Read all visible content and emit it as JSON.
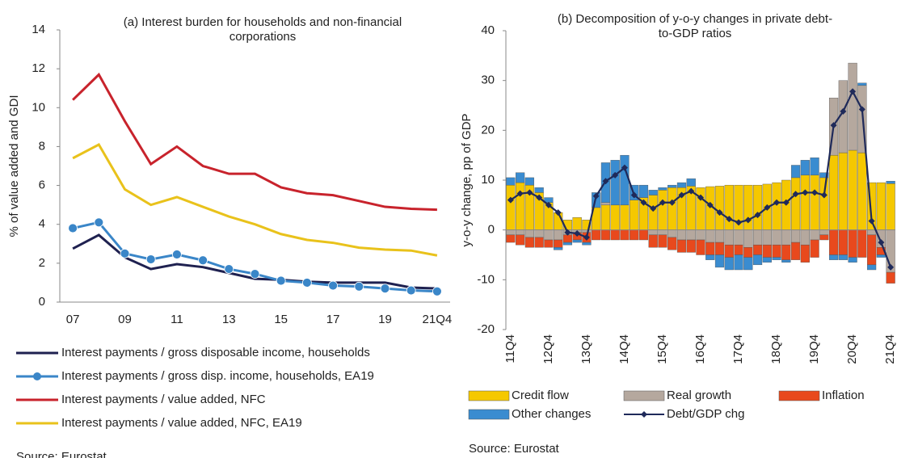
{
  "chart_data": [
    {
      "type": "line",
      "title": [
        "(a) Interest burden for households  and non-financial",
        "corporations"
      ],
      "y_label": "% of value added and GDI",
      "categories": [
        "07",
        null,
        "09",
        null,
        "11",
        null,
        "13",
        null,
        "15",
        null,
        "17",
        null,
        "19",
        null,
        "21Q4"
      ],
      "ylim": [
        0,
        14
      ],
      "yticks": [
        0,
        2,
        4,
        6,
        8,
        10,
        12,
        14
      ],
      "series": [
        {
          "name": "Interest payments / gross disposable income, households",
          "color": "#1f2150",
          "marker": "none",
          "values": [
            2.75,
            3.45,
            2.3,
            1.7,
            1.95,
            1.8,
            1.5,
            1.2,
            1.15,
            1.05,
            1.0,
            1.0,
            1.0,
            0.75,
            0.7
          ]
        },
        {
          "name": "Interest payments / gross disp. income, households, EA19",
          "color": "#3a86c8",
          "marker": "circle",
          "values": [
            3.8,
            4.1,
            2.5,
            2.2,
            2.45,
            2.15,
            1.7,
            1.45,
            1.1,
            1.0,
            0.85,
            0.8,
            0.7,
            0.6,
            0.55
          ]
        },
        {
          "name": "Interest payments / value added, NFC",
          "color": "#c8232c",
          "marker": "none",
          "values": [
            10.4,
            11.7,
            9.3,
            7.1,
            8.0,
            7.0,
            6.6,
            6.6,
            5.9,
            5.6,
            5.5,
            5.2,
            4.9,
            4.8,
            4.75
          ]
        },
        {
          "name": "Interest payments / value added, NFC, EA19",
          "color": "#e9c21b",
          "marker": "none",
          "values": [
            7.4,
            8.1,
            5.8,
            5.0,
            5.4,
            4.9,
            4.4,
            4.0,
            3.5,
            3.2,
            3.05,
            2.8,
            2.7,
            2.65,
            2.4
          ]
        }
      ],
      "source": "Source: Eurostat"
    },
    {
      "type": "stacked-bar",
      "title": [
        "(b) Decomposition of y-o-y changes in private debt-",
        "to-GDP ratios"
      ],
      "y_label": "y-o-y change, pp of GDP",
      "categories": [
        "11Q4",
        null,
        null,
        null,
        "12Q4",
        null,
        null,
        null,
        "13Q4",
        null,
        null,
        null,
        "14Q4",
        null,
        null,
        null,
        "15Q4",
        null,
        null,
        null,
        "16Q4",
        null,
        null,
        null,
        "17Q4",
        null,
        null,
        null,
        "18Q4",
        null,
        null,
        null,
        "19Q4",
        null,
        null,
        null,
        "20Q4",
        null,
        null,
        null,
        "21Q4"
      ],
      "ylim": [
        -20,
        40
      ],
      "yticks": [
        -20,
        -10,
        0,
        10,
        20,
        30,
        40
      ],
      "series": [
        {
          "name": "Credit flow",
          "color": "#f5c800",
          "type": "bar",
          "values": [
            9,
            9.5,
            9,
            7.5,
            5.5,
            3.5,
            2,
            2.5,
            2,
            4.5,
            5,
            5,
            5,
            6,
            6.5,
            7,
            8,
            8.5,
            8.5,
            8.8,
            8.5,
            8.7,
            8.8,
            9,
            9,
            9,
            9,
            9.2,
            9.5,
            10,
            10.5,
            11,
            11,
            10.5,
            15,
            15.5,
            16,
            15.5,
            9.5,
            9.5,
            9.3
          ]
        },
        {
          "name": "Real growth",
          "color": "#b5a89e",
          "type": "bar",
          "values": [
            -1,
            -1,
            -1.5,
            -1.5,
            -2,
            -2,
            -1,
            -0.5,
            -0.5,
            0,
            0.5,
            0,
            0,
            0,
            0,
            -1,
            -1,
            -1.5,
            -2,
            -2,
            -2,
            -2.5,
            -2.5,
            -3,
            -3,
            -3.5,
            -3,
            -3,
            -3,
            -3,
            -2.5,
            -3,
            -2,
            -1,
            11.5,
            14.5,
            17.5,
            13.5,
            -1,
            -3.5,
            -8.5
          ]
        },
        {
          "name": "Inflation",
          "color": "#e8491d",
          "type": "bar",
          "values": [
            -1.5,
            -2,
            -2,
            -2,
            -1.5,
            -1.5,
            -1.5,
            -1.5,
            -2,
            -2,
            -2,
            -2,
            -2,
            -2,
            -2,
            -2.5,
            -2.5,
            -2.5,
            -2.5,
            -2.5,
            -3,
            -2.5,
            -2.5,
            -2.5,
            -2,
            -2,
            -2,
            -2.5,
            -2.5,
            -3,
            -3.5,
            -3.5,
            -3.5,
            -1,
            -5,
            -5,
            -5.5,
            -5.5,
            -6,
            -1.5,
            -2.2
          ]
        },
        {
          "name": "Other changes",
          "color": "#3a8cd0",
          "type": "bar",
          "values": [
            1.5,
            2,
            1.5,
            1,
            1,
            -0.5,
            -0.5,
            -0.5,
            -0.5,
            3,
            8,
            9,
            10,
            3,
            2.5,
            1,
            0.5,
            0.5,
            1,
            1.5,
            0,
            -1,
            -2.5,
            -2.5,
            -3,
            -2.5,
            -2,
            -1,
            -0.5,
            -0.5,
            2.5,
            3,
            3.5,
            1,
            -1,
            -1,
            -1,
            0.5,
            -1,
            -0.5,
            0.5
          ]
        },
        {
          "name": "Debt/GDP chg",
          "color": "#1f2a5a",
          "type": "line",
          "values": [
            6,
            7.3,
            7.5,
            6.5,
            5,
            3.5,
            -0.5,
            -0.7,
            -1.5,
            6.8,
            9.8,
            11,
            12.5,
            7,
            5.5,
            4.3,
            5.5,
            5.5,
            7,
            7.8,
            6.5,
            5,
            3.5,
            2.2,
            1.5,
            2,
            3,
            4.5,
            5.5,
            5.5,
            7.2,
            7.5,
            7.5,
            7,
            21,
            23.8,
            27.8,
            24.2,
            1.8,
            -2.5,
            -7.5
          ]
        }
      ],
      "source": "Source: Eurostat"
    }
  ]
}
